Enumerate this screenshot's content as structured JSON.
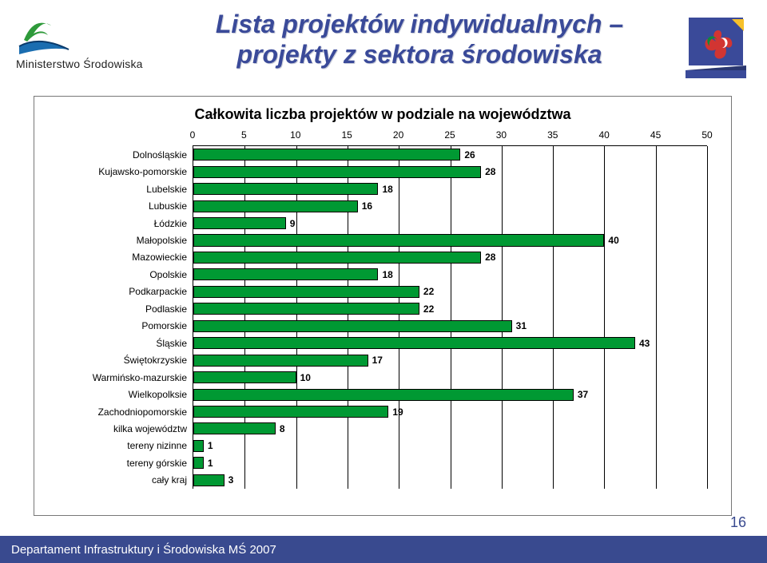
{
  "header": {
    "ministry_label": "Ministerstwo Środowiska",
    "title_line1": "Lista projektów indywidualnych –",
    "title_line2": "projekty z sektora środowiska",
    "title_color": "#3a4a99",
    "logo": {
      "leaf_color": "#2e9a3a",
      "wave_color": "#1a6db0",
      "stroke": "#0a3a6b"
    },
    "flag": {
      "bg": "#3a4a99",
      "star_color": "#f6c02a",
      "red": "#d23532",
      "green": "#0f8a3a",
      "white": "#ffffff"
    }
  },
  "chart": {
    "type": "bar",
    "orientation": "horizontal",
    "title": "Całkowita liczba projektów w podziale na województwa",
    "xlim": [
      0,
      50
    ],
    "xtick_step": 5,
    "xticks": [
      "0",
      "5",
      "10",
      "15",
      "20",
      "25",
      "30",
      "35",
      "40",
      "45",
      "50"
    ],
    "grid_color": "#000000",
    "border_color": "#777777",
    "bar_fill": "#009933",
    "bar_border": "#000000",
    "label_fontsize": 12,
    "title_fontsize": 18,
    "value_fontweight": 700,
    "categories": [
      "Dolnośląskie",
      "Kujawsko-pomorskie",
      "Lubelskie",
      "Lubuskie",
      "Łódzkie",
      "Małopolskie",
      "Mazowieckie",
      "Opolskie",
      "Podkarpackie",
      "Podlaskie",
      "Pomorskie",
      "Śląskie",
      "Świętokrzyskie",
      "Warmińsko-mazurskie",
      "Wielkopolksie",
      "Zachodniopomorskie",
      "kilka województw",
      "tereny nizinne",
      "tereny górskie",
      "cały kraj"
    ],
    "values": [
      26,
      28,
      18,
      16,
      9,
      40,
      28,
      18,
      22,
      22,
      31,
      43,
      17,
      10,
      37,
      19,
      8,
      1,
      1,
      3
    ]
  },
  "footer": {
    "text": "Departament Infrastruktury i Środowiska MŚ 2007",
    "bg_color": "#394a8f",
    "text_color": "#ffffff"
  },
  "page_number": "16"
}
